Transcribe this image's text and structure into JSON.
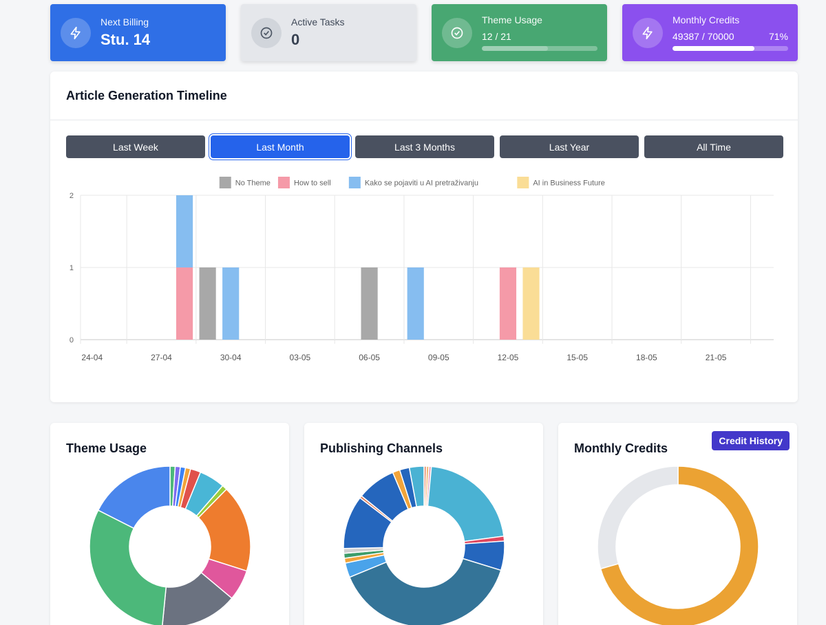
{
  "stats": {
    "billing": {
      "label": "Next Billing",
      "value": "Stu. 14",
      "icon": "lightning-icon"
    },
    "tasks": {
      "label": "Active Tasks",
      "value": "0",
      "icon": "check-circle-icon"
    },
    "theme": {
      "label": "Theme Usage",
      "value": "12 / 21",
      "progress": 0.571,
      "icon": "check-circle-icon"
    },
    "credits": {
      "label": "Monthly Credits",
      "value": "49387 / 70000",
      "percent": "71%",
      "progress": 0.71,
      "icon": "lightning-icon"
    }
  },
  "timeline": {
    "title": "Article Generation Timeline",
    "ranges": [
      "Last Week",
      "Last Month",
      "Last 3 Months",
      "Last Year",
      "All Time"
    ],
    "active_range": "Last Month"
  },
  "chart_data": [
    {
      "type": "bar",
      "stacked": true,
      "title": "",
      "x": [
        "24-04",
        "25-04",
        "26-04",
        "27-04",
        "28-04",
        "29-04",
        "30-04",
        "01-05",
        "02-05",
        "03-05",
        "04-05",
        "05-05",
        "06-05",
        "07-05",
        "08-05",
        "09-05",
        "10-05",
        "11-05",
        "12-05",
        "13-05",
        "14-05",
        "15-05",
        "16-05",
        "17-05",
        "18-05",
        "19-05",
        "20-05",
        "21-05",
        "22-05",
        "23-05"
      ],
      "tick_labels": [
        "24-04",
        "27-04",
        "30-04",
        "03-05",
        "06-05",
        "09-05",
        "12-05",
        "15-05",
        "18-05",
        "21-05"
      ],
      "ylim": [
        0,
        2
      ],
      "yticks": [
        0,
        1,
        2
      ],
      "legend_position": "top",
      "series": [
        {
          "name": "No Theme",
          "color": "#a8a8a8",
          "points": [
            [
              "29-04",
              1
            ],
            [
              "06-05",
              1
            ]
          ]
        },
        {
          "name": "How to sell",
          "color": "#f59aa8",
          "points": [
            [
              "28-04",
              1
            ],
            [
              "12-05",
              1
            ]
          ]
        },
        {
          "name": "Kako se pojaviti u AI pretraživanju",
          "color": "#86bdf0",
          "points": [
            [
              "28-04",
              1
            ],
            [
              "30-04",
              1
            ],
            [
              "08-05",
              1
            ]
          ]
        },
        {
          "name": "AI in Business Future",
          "color": "#fadd96",
          "points": [
            [
              "13-05",
              1
            ]
          ]
        }
      ]
    },
    {
      "type": "pie",
      "donut": true,
      "title": "Theme Usage",
      "values": [
        1,
        1,
        1,
        1,
        2,
        5,
        1,
        17,
        6,
        15,
        30,
        17
      ],
      "colors": [
        "#4cb87a",
        "#7d6cf0",
        "#3b82f6",
        "#f2a43a",
        "#e0524b",
        "#49b6d6",
        "#9ccc3c",
        "#ee7c2e",
        "#e0579c",
        "#6b7280",
        "#4cb87a",
        "#4a86ec"
      ]
    },
    {
      "type": "pie",
      "donut": true,
      "title": "Publishing Channels",
      "values": [
        0.5,
        0.5,
        0.5,
        22,
        1,
        6,
        40,
        3,
        1,
        1,
        1,
        11,
        0.5,
        8,
        1.5,
        2,
        3
      ],
      "colors": [
        "#e58b6b",
        "#f0b06a",
        "#e7a0b8",
        "#4ab2d3",
        "#e0475f",
        "#2566bd",
        "#347498",
        "#4aa3ea",
        "#f2a43a",
        "#3c9d6a",
        "#d0d0d0",
        "#2566bd",
        "#e07f60",
        "#2566bd",
        "#f2a43a",
        "#2566bd",
        "#4ab2d3"
      ]
    },
    {
      "type": "pie",
      "donut": true,
      "title": "Monthly Credits",
      "values": [
        49387,
        20613
      ],
      "colors": [
        "#eba233",
        "#e5e7eb"
      ]
    }
  ],
  "bottom": {
    "theme_title": "Theme Usage",
    "channels_title": "Publishing Channels",
    "credits_title": "Monthly Credits",
    "credit_history_label": "Credit History"
  }
}
